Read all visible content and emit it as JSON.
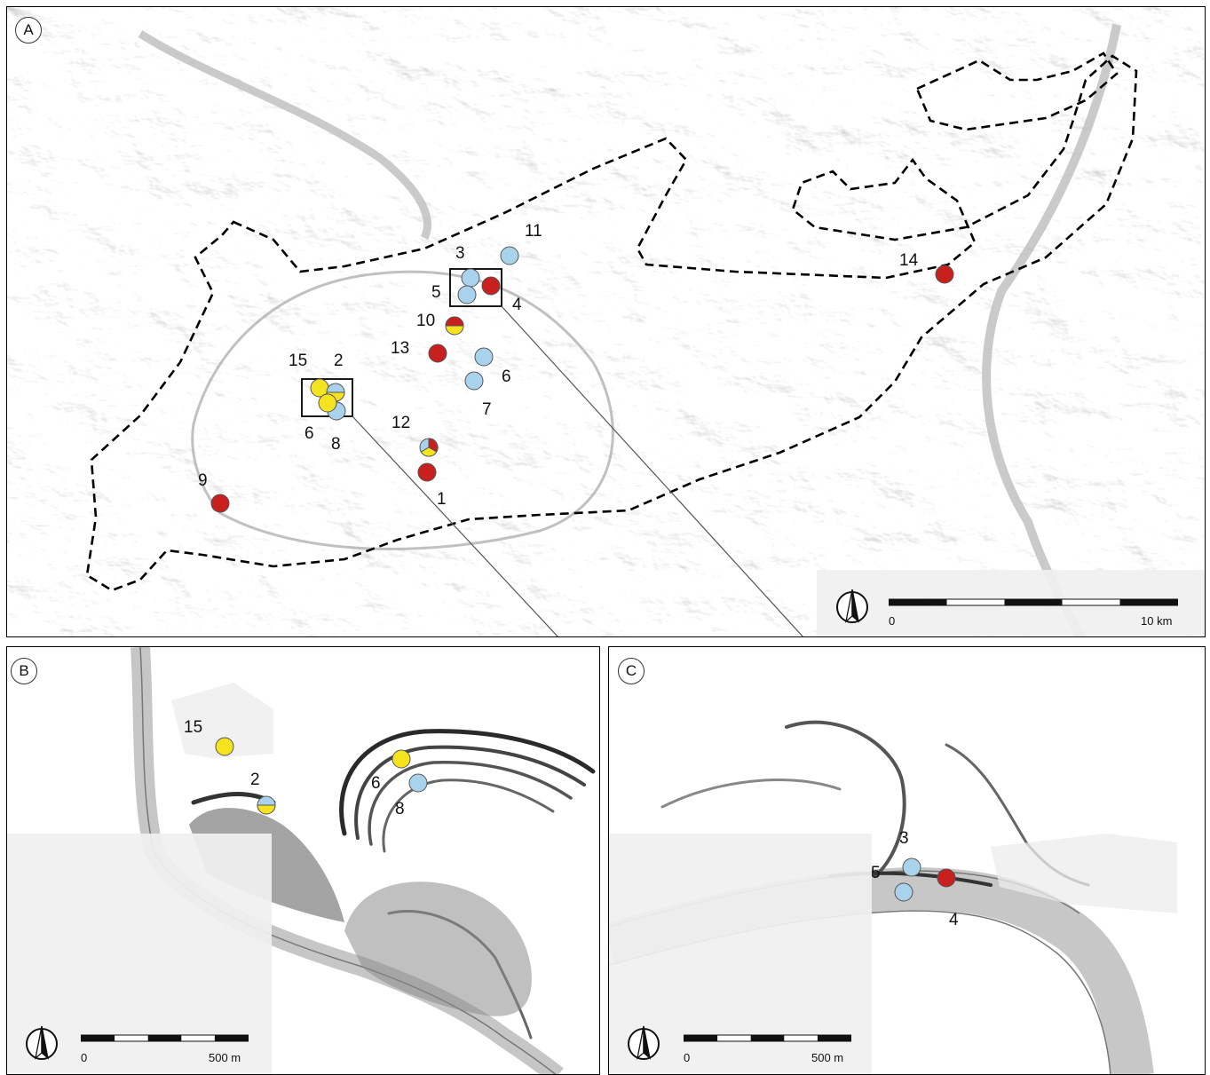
{
  "legend_colors": {
    "red": "#c8201e",
    "yellow": "#f6e31f",
    "blue": "#a9d2ec"
  },
  "panel_a": {
    "letter": "A",
    "labels": [
      "11",
      "3",
      "5",
      "4",
      "10",
      "13",
      "15",
      "2",
      "6",
      "7",
      "6",
      "8",
      "12",
      "1",
      "9",
      "14"
    ],
    "scale": {
      "start": "0",
      "end": "10 km"
    },
    "north_icon": "north-arrow-icon"
  },
  "panel_b": {
    "letter": "B",
    "labels": [
      "15",
      "2",
      "6",
      "8"
    ],
    "scale": {
      "start": "0",
      "end": "500 m"
    },
    "north_icon": "north-arrow-icon"
  },
  "panel_c": {
    "letter": "C",
    "labels": [
      "3",
      "5",
      "4"
    ],
    "scale": {
      "start": "0",
      "end": "500 m"
    },
    "north_icon": "north-arrow-icon"
  }
}
